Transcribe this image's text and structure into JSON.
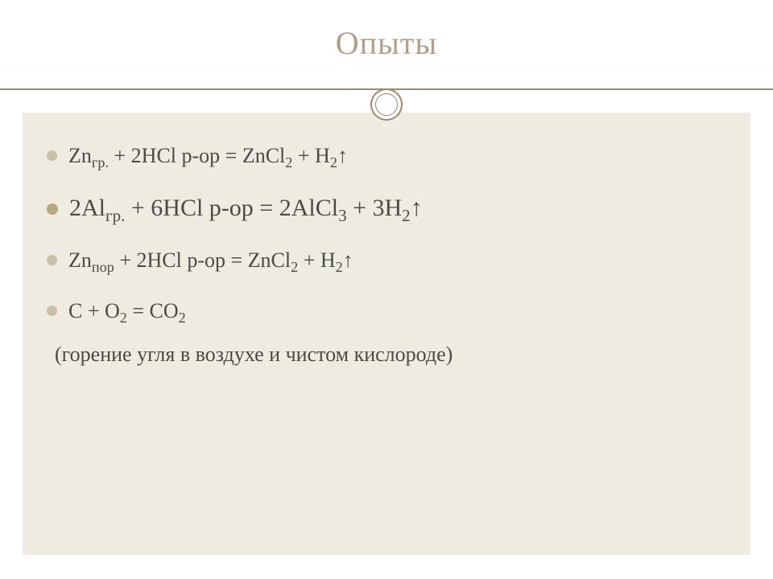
{
  "slide": {
    "title": "Опыты",
    "title_color": "#b0a088",
    "title_fontsize": 40,
    "rule_color": "#9a8a6e",
    "content_bg": "#eeece1",
    "bullet_color_normal": "#cbbfa5",
    "bullet_color_emph": "#b7a881",
    "text_color": "#4a4a4a",
    "items": [
      {
        "size": "normal",
        "parts": [
          "Zn",
          {
            "sub": "гр."
          },
          " + 2HCl р-ор = ZnCl",
          {
            "sub": "2"
          },
          " + H",
          {
            "sub": "2"
          },
          "↑"
        ]
      },
      {
        "size": "large",
        "parts": [
          "2Al",
          {
            "sub": "гр."
          },
          " + 6HCl р-ор = 2AlCl",
          {
            "sub": "3"
          },
          " + 3H",
          {
            "sub": "2"
          },
          "↑"
        ]
      },
      {
        "size": "normal",
        "parts": [
          "Zn",
          {
            "sub": "пор"
          },
          " + 2HCl р-ор = ZnCl",
          {
            "sub": "2"
          },
          " + H",
          {
            "sub": "2"
          },
          "↑"
        ]
      },
      {
        "size": "normal",
        "parts": [
          "C + O",
          {
            "sub": "2"
          },
          " = CO",
          {
            "sub": "2"
          }
        ]
      }
    ],
    "note": "(горение угля в воздухе и чистом кислороде)"
  }
}
